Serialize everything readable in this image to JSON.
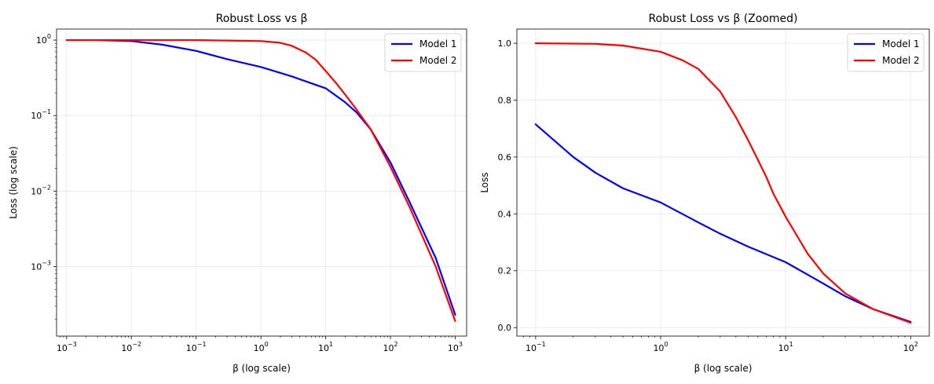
{
  "chart_data": [
    {
      "type": "line",
      "title": "Robust Loss vs β",
      "xlabel": "β (log scale)",
      "ylabel": "Loss (log scale)",
      "xscale": "log",
      "yscale": "log",
      "xlim": [
        0.0007,
        1500
      ],
      "ylim": [
        0.00012,
        1.4
      ],
      "xticks": [
        {
          "value": 0.001,
          "base": "10",
          "exp": "−3"
        },
        {
          "value": 0.01,
          "base": "10",
          "exp": "−2"
        },
        {
          "value": 0.1,
          "base": "10",
          "exp": "−1"
        },
        {
          "value": 1,
          "base": "10",
          "exp": "0"
        },
        {
          "value": 10,
          "base": "10",
          "exp": "1"
        },
        {
          "value": 100,
          "base": "10",
          "exp": "2"
        },
        {
          "value": 1000,
          "base": "10",
          "exp": "3"
        }
      ],
      "yticks": [
        {
          "value": 0.001,
          "base": "10",
          "exp": "−3"
        },
        {
          "value": 0.01,
          "base": "10",
          "exp": "−2"
        },
        {
          "value": 0.1,
          "base": "10",
          "exp": "−1"
        },
        {
          "value": 1,
          "base": "10",
          "exp": "0"
        }
      ],
      "grid": true,
      "legend_position": "top-right",
      "series": [
        {
          "name": "Model 1",
          "color": "#0000ff",
          "x": [
            0.001,
            0.003,
            0.01,
            0.03,
            0.1,
            0.3,
            1,
            3,
            10,
            20,
            30,
            50,
            100,
            200,
            500,
            1000
          ],
          "y": [
            1.0,
            1.0,
            0.97,
            0.87,
            0.72,
            0.56,
            0.44,
            0.33,
            0.23,
            0.15,
            0.11,
            0.065,
            0.024,
            0.007,
            0.0013,
            0.00023
          ]
        },
        {
          "name": "Model 2",
          "color": "#ff0000",
          "x": [
            0.001,
            0.01,
            0.1,
            1,
            2,
            3,
            5,
            7,
            10,
            15,
            20,
            30,
            50,
            100,
            200,
            500,
            1000
          ],
          "y": [
            1.0,
            1.0,
            1.0,
            0.97,
            0.92,
            0.84,
            0.68,
            0.55,
            0.39,
            0.26,
            0.19,
            0.12,
            0.065,
            0.021,
            0.006,
            0.001,
            0.00019
          ]
        }
      ]
    },
    {
      "type": "line",
      "title": "Robust Loss vs β (Zoomed)",
      "xlabel": "β (log scale)",
      "ylabel": "Loss",
      "xscale": "log",
      "yscale": "linear",
      "xlim": [
        0.0708,
        141
      ],
      "ylim": [
        -0.03,
        1.05
      ],
      "xticks": [
        {
          "value": 0.1,
          "base": "10",
          "exp": "−1"
        },
        {
          "value": 1,
          "base": "10",
          "exp": "0"
        },
        {
          "value": 10,
          "base": "10",
          "exp": "1"
        },
        {
          "value": 100,
          "base": "10",
          "exp": "2"
        }
      ],
      "yticks": [
        {
          "value": 0.0,
          "label": "0.0"
        },
        {
          "value": 0.2,
          "label": "0.2"
        },
        {
          "value": 0.4,
          "label": "0.4"
        },
        {
          "value": 0.6,
          "label": "0.6"
        },
        {
          "value": 0.8,
          "label": "0.8"
        },
        {
          "value": 1.0,
          "label": "1.0"
        }
      ],
      "grid": true,
      "legend_position": "top-right",
      "series": [
        {
          "name": "Model 1",
          "color": "#0000ff",
          "x": [
            0.1,
            0.2,
            0.3,
            0.5,
            1,
            2,
            3,
            5,
            10,
            20,
            30,
            50,
            100
          ],
          "y": [
            0.715,
            0.6,
            0.545,
            0.49,
            0.44,
            0.37,
            0.33,
            0.285,
            0.23,
            0.155,
            0.11,
            0.065,
            0.02
          ]
        },
        {
          "name": "Model 2",
          "color": "#ff0000",
          "x": [
            0.1,
            0.3,
            0.5,
            1,
            1.5,
            2,
            3,
            4,
            5,
            6,
            7,
            8,
            10,
            15,
            20,
            30,
            50,
            100
          ],
          "y": [
            1.0,
            0.998,
            0.992,
            0.97,
            0.94,
            0.91,
            0.83,
            0.74,
            0.66,
            0.59,
            0.53,
            0.47,
            0.39,
            0.26,
            0.19,
            0.12,
            0.065,
            0.017
          ]
        }
      ]
    }
  ]
}
